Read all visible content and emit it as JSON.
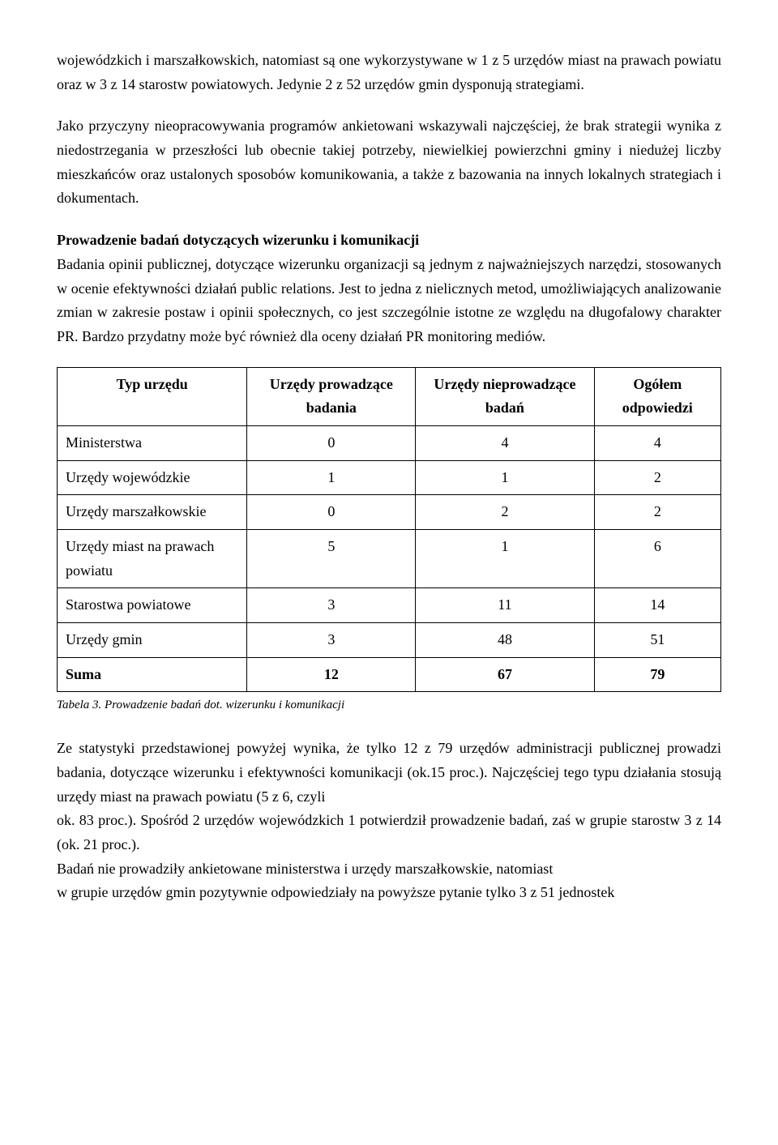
{
  "para1": "wojewódzkich i marszałkowskich, natomiast są one wykorzystywane w 1 z 5 urzędów miast na prawach powiatu oraz w 3 z 14 starostw powiatowych. Jedynie 2 z 52 urzędów gmin dysponują strategiami.",
  "para2": "Jako przyczyny nieopracowywania programów ankietowani wskazywali najczęściej, że brak strategii wynika z niedostrzegania w przeszłości lub obecnie takiej potrzeby, niewielkiej powierzchni gminy i niedużej liczby mieszkańców oraz ustalonych sposobów komunikowania, a także z bazowania na innych lokalnych strategiach i dokumentach.",
  "heading": "Prowadzenie badań dotyczących wizerunku i komunikacji",
  "para3": "Badania opinii publicznej, dotyczące wizerunku organizacji są jednym z najważniejszych narzędzi, stosowanych w ocenie efektywności działań public relations. Jest to jedna z nielicznych metod, umożliwiających analizowanie zmian w zakresie postaw i opinii społecznych, co jest szczególnie istotne ze względu na długofalowy charakter PR. Bardzo przydatny może być również dla oceny działań PR monitoring mediów.",
  "table": {
    "headers": [
      "Typ urzędu",
      "Urzędy prowadzące badania",
      "Urzędy nieprowadzące badań",
      "Ogółem odpowiedzi"
    ],
    "rows": [
      [
        "Ministerstwa",
        "0",
        "4",
        "4"
      ],
      [
        "Urzędy wojewódzkie",
        "1",
        "1",
        "2"
      ],
      [
        "Urzędy marszałkowskie",
        "0",
        "2",
        "2"
      ],
      [
        "Urzędy miast na prawach powiatu",
        "5",
        "1",
        "6"
      ],
      [
        "Starostwa powiatowe",
        "3",
        "11",
        "14"
      ],
      [
        "Urzędy gmin",
        "3",
        "48",
        "51"
      ]
    ],
    "sum": [
      "Suma",
      "12",
      "67",
      "79"
    ]
  },
  "caption": "Tabela 3. Prowadzenie badań dot. wizerunku i komunikacji",
  "para4": "Ze statystyki przedstawionej powyżej wynika, że tylko 12 z 79 urzędów administracji publicznej prowadzi badania, dotyczące wizerunku i efektywności komunikacji (ok.15 proc.). Najczęściej tego typu działania stosują urzędy miast na prawach powiatu (5 z 6, czyli",
  "para5": "ok. 83 proc.). Spośród 2 urzędów wojewódzkich 1 potwierdził prowadzenie badań, zaś w grupie starostw 3 z 14 (ok. 21 proc.).",
  "para6": "Badań nie prowadziły ankietowane ministerstwa i urzędy marszałkowskie, natomiast",
  "para7": "w grupie urzędów gmin pozytywnie odpowiedziały na powyższe pytanie tylko 3 z 51 jednostek"
}
